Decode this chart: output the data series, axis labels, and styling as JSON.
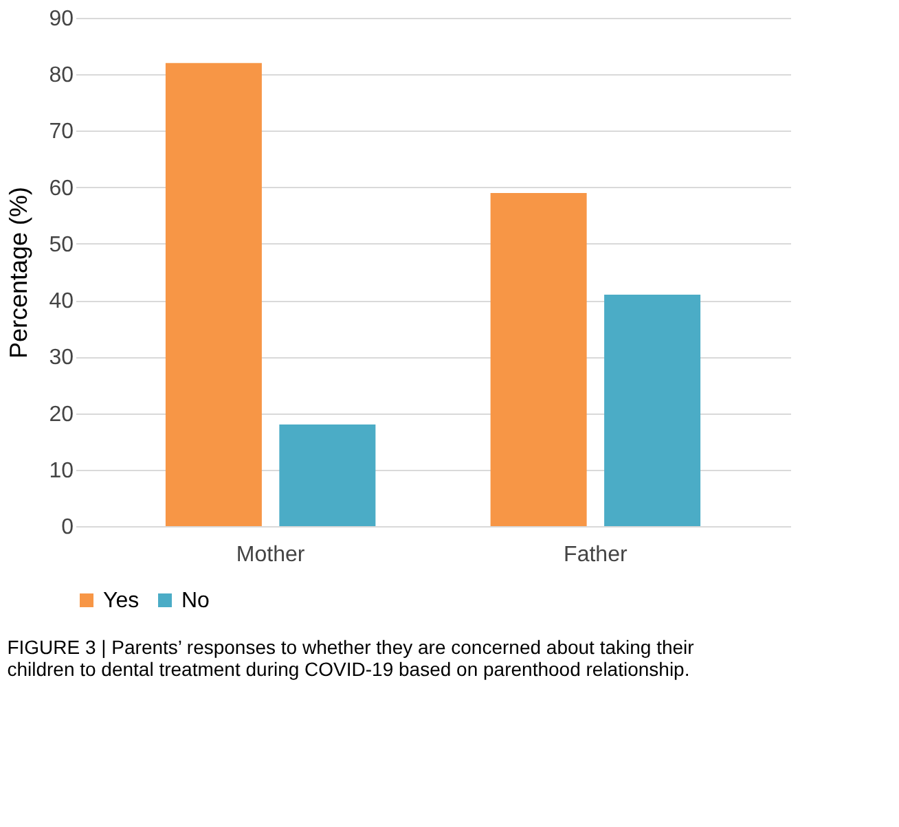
{
  "chart_data": {
    "type": "bar",
    "ylabel": "Percentage (%)",
    "categories": [
      "Mother",
      "Father"
    ],
    "series": [
      {
        "name": "Yes",
        "color": "#f79646",
        "values": [
          82,
          59
        ]
      },
      {
        "name": "No",
        "color": "#4bacc6",
        "values": [
          18,
          41
        ]
      }
    ],
    "ylim": [
      0,
      90
    ],
    "yticks": [
      0,
      10,
      20,
      30,
      40,
      50,
      60,
      70,
      80,
      90
    ],
    "grid": "y",
    "legend": "bottom",
    "annotations": [
      "FIGURE 3 | Parents’ responses to whether they are concerned about taking their children to dental treatment during COVID-19 based on parenthood relationship."
    ]
  }
}
